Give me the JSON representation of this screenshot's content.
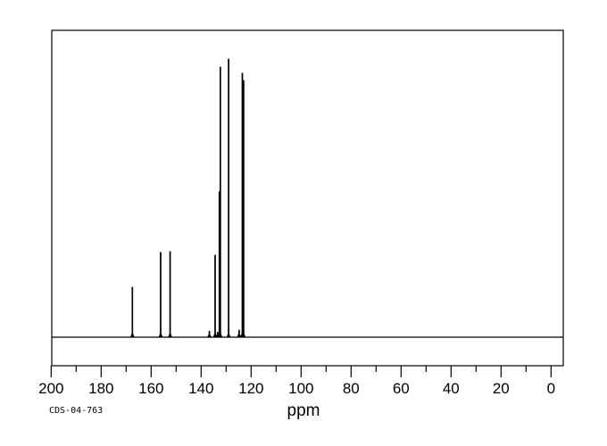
{
  "chart_data": {
    "type": "line",
    "subtype": "13C-NMR-spectrum",
    "title": "",
    "xlabel": "ppm",
    "ylabel": "",
    "sample_id": "CDS-04-763",
    "x_axis": {
      "min": 0,
      "max": 200,
      "direction": "reversed",
      "major_tick_step": 20,
      "minor_tick_step": 10,
      "tick_labels": [
        "200",
        "180",
        "160",
        "140",
        "120",
        "100",
        "80",
        "60",
        "40",
        "20",
        "0"
      ]
    },
    "ylim": [
      0,
      105
    ],
    "grid": false,
    "legend": false,
    "peaks": [
      {
        "ppm": 167.5,
        "intensity": 18.0
      },
      {
        "ppm": 156.2,
        "intensity": 30.5
      },
      {
        "ppm": 152.4,
        "intensity": 30.8
      },
      {
        "ppm": 136.7,
        "intensity": 2.2
      },
      {
        "ppm": 134.4,
        "intensity": 29.5
      },
      {
        "ppm": 133.4,
        "intensity": 1.9
      },
      {
        "ppm": 132.7,
        "intensity": 52.3
      },
      {
        "ppm": 132.3,
        "intensity": 97.1
      },
      {
        "ppm": 129.0,
        "intensity": 100.0
      },
      {
        "ppm": 124.8,
        "intensity": 2.6
      },
      {
        "ppm": 123.5,
        "intensity": 94.9
      },
      {
        "ppm": 123.0,
        "intensity": 92.3
      }
    ]
  },
  "colors": {
    "line": "#000000",
    "background": "#ffffff"
  }
}
